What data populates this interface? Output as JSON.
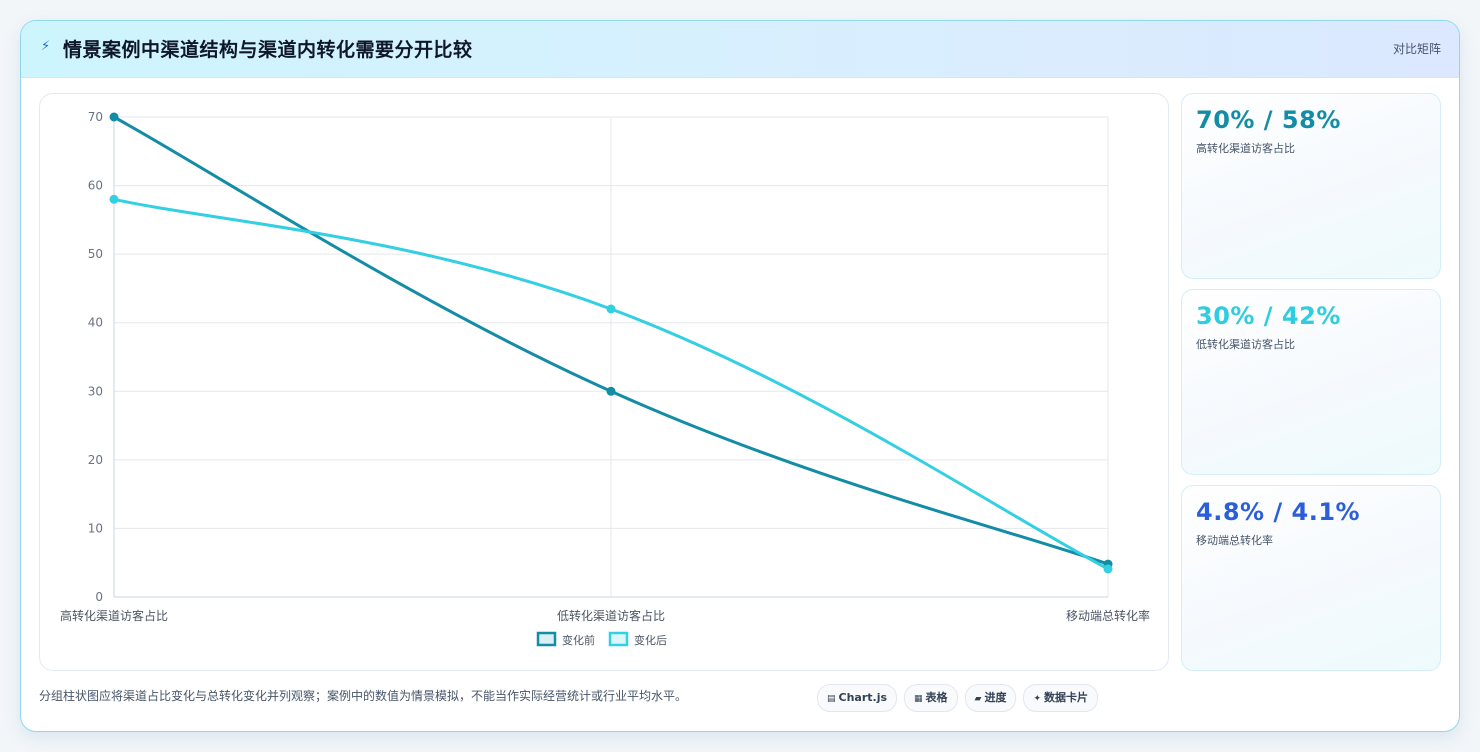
{
  "header": {
    "icon": "zap-icon",
    "title": "情景案例中渠道结构与渠道内转化需要分开比较",
    "mode": "对比矩阵"
  },
  "chart_data": {
    "type": "line",
    "categories": [
      "高转化渠道访客占比",
      "低转化渠道访客占比",
      "移动端总转化率"
    ],
    "series": [
      {
        "name": "变化前",
        "values": [
          70,
          30,
          4.8
        ],
        "color": "#138ca5"
      },
      {
        "name": "变化后",
        "values": [
          58,
          42,
          4.1
        ],
        "color": "#33cfe2"
      }
    ],
    "ylim": [
      0,
      70
    ],
    "yticks": [
      "0",
      "10",
      "20",
      "30",
      "40",
      "50",
      "60",
      "70"
    ],
    "grid": true,
    "legend_position": "bottom"
  },
  "stats": [
    {
      "value": "70% / 58%",
      "label": "高转化渠道访客占比",
      "color": "#138ca5"
    },
    {
      "value": "30% / 42%",
      "label": "低转化渠道访客占比",
      "color": "#2ecde0"
    },
    {
      "value": "4.8% / 4.1%",
      "label": "移动端总转化率",
      "color": "#2b5fd9"
    }
  ],
  "footer": {
    "note": "分组柱状图应将渠道占比变化与总转化变化并列观察；案例中的数值为情景模拟，不能当作实际经营统计或行业平均水平。",
    "tags": [
      {
        "icon": "chart-icon",
        "glyph": "▤",
        "label": "Chart.js"
      },
      {
        "icon": "table-icon",
        "glyph": "▦",
        "label": "表格"
      },
      {
        "icon": "progress-icon",
        "glyph": "▰",
        "label": "进度"
      },
      {
        "icon": "sparkle-icon",
        "glyph": "✦",
        "label": "数据卡片"
      }
    ]
  }
}
